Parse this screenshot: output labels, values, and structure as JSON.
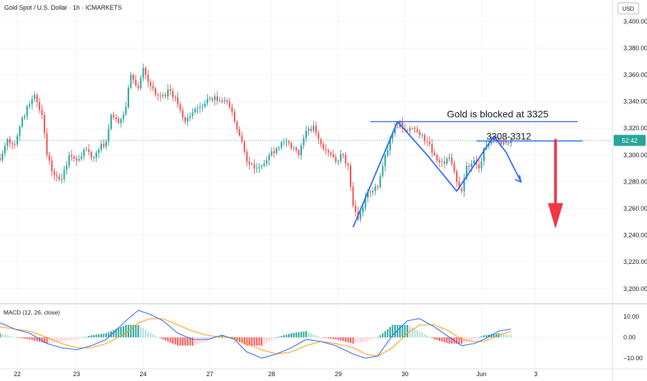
{
  "header": {
    "title": "Gold Spot / U.S. Dollar · 1h · ICMARKETS",
    "currency_badge": "USD"
  },
  "colors": {
    "up": "#26a69a",
    "down": "#ef5350",
    "annotation": "#2962ff",
    "arrow_red": "#f23645",
    "macd_line": "#2962ff",
    "signal_line": "#ff9800",
    "hist_up_strong": "#26a69a",
    "hist_up_weak": "#b2dfdb",
    "hist_down_strong": "#ff5252",
    "hist_down_weak": "#ffcdd2"
  },
  "icons": {
    "price_arrow": "down-arrow-icon"
  },
  "chart_data": {
    "type": "candlestick",
    "title": "Gold Spot / U.S. Dollar · 1h · ICMARKETS",
    "price_axis": {
      "ticks": [
        "3,400.00",
        "3,380.00",
        "3,360.00",
        "3,340.00",
        "3,320.00",
        "3,300.00",
        "3,280.00",
        "3,260.00",
        "3,240.00",
        "3,220.00",
        "3,200.00"
      ],
      "tick_values": [
        3400,
        3380,
        3360,
        3340,
        3320,
        3300,
        3280,
        3260,
        3240,
        3220,
        3200
      ],
      "ylim": [
        3189,
        3416
      ]
    },
    "time_axis": {
      "ticks": [
        "22",
        "23",
        "24",
        "27",
        "28",
        "29",
        "30",
        "Jun",
        "3"
      ],
      "tick_positions": [
        7,
        31,
        58,
        85,
        110,
        137,
        164,
        195,
        217
      ],
      "xlim": [
        0,
        248
      ]
    },
    "current_price": {
      "label": "52:42",
      "value": 3311
    },
    "keypoints": [
      [
        0,
        3296
      ],
      [
        3,
        3312
      ],
      [
        6,
        3308
      ],
      [
        9,
        3328
      ],
      [
        12,
        3338
      ],
      [
        14,
        3345
      ],
      [
        17,
        3330
      ],
      [
        19,
        3300
      ],
      [
        22,
        3285
      ],
      [
        25,
        3282
      ],
      [
        28,
        3300
      ],
      [
        31,
        3296
      ],
      [
        34,
        3304
      ],
      [
        37,
        3298
      ],
      [
        40,
        3304
      ],
      [
        43,
        3310
      ],
      [
        45,
        3330
      ],
      [
        48,
        3324
      ],
      [
        51,
        3336
      ],
      [
        53,
        3360
      ],
      [
        56,
        3350
      ],
      [
        58,
        3365
      ],
      [
        61,
        3352
      ],
      [
        63,
        3345
      ],
      [
        66,
        3345
      ],
      [
        69,
        3348
      ],
      [
        72,
        3338
      ],
      [
        75,
        3325
      ],
      [
        78,
        3332
      ],
      [
        81,
        3336
      ],
      [
        84,
        3342
      ],
      [
        87,
        3344
      ],
      [
        90,
        3340
      ],
      [
        92,
        3340
      ],
      [
        95,
        3325
      ],
      [
        98,
        3310
      ],
      [
        100,
        3295
      ],
      [
        103,
        3290
      ],
      [
        106,
        3292
      ],
      [
        109,
        3300
      ],
      [
        112,
        3305
      ],
      [
        115,
        3310
      ],
      [
        118,
        3305
      ],
      [
        121,
        3300
      ],
      [
        124,
        3318
      ],
      [
        127,
        3322
      ],
      [
        130,
        3308
      ],
      [
        133,
        3302
      ],
      [
        136,
        3295
      ],
      [
        139,
        3300
      ],
      [
        141,
        3292
      ],
      [
        143,
        3262
      ],
      [
        145,
        3252
      ],
      [
        148,
        3268
      ],
      [
        150,
        3272
      ],
      [
        153,
        3276
      ],
      [
        156,
        3300
      ],
      [
        159,
        3316
      ],
      [
        162,
        3325
      ],
      [
        165,
        3318
      ],
      [
        167,
        3320
      ],
      [
        170,
        3315
      ],
      [
        173,
        3310
      ],
      [
        176,
        3300
      ],
      [
        179,
        3295
      ],
      [
        182,
        3298
      ],
      [
        185,
        3280
      ],
      [
        187,
        3273
      ],
      [
        189,
        3292
      ],
      [
        192,
        3296
      ],
      [
        194,
        3290
      ],
      [
        196,
        3305
      ],
      [
        199,
        3312
      ],
      [
        202,
        3310
      ],
      [
        204,
        3310
      ],
      [
        207,
        3312
      ]
    ],
    "annotations": {
      "resistance_label": "Gold is blocked at 3325",
      "resistance_level": 3325,
      "support_label": "3308-3312",
      "support_range": [
        3308,
        3312
      ],
      "pattern": "W",
      "projection": "down"
    },
    "macd": {
      "label": "MACD (12, 26, close)",
      "ticks": [
        "10.00",
        "0.00",
        "−10.00"
      ],
      "tick_values": [
        10,
        0,
        -10
      ],
      "ylim": [
        -15,
        16
      ],
      "macd_line": [
        [
          0,
          7
        ],
        [
          6,
          4
        ],
        [
          12,
          2
        ],
        [
          19,
          -3
        ],
        [
          25,
          -5
        ],
        [
          31,
          -6
        ],
        [
          37,
          -4
        ],
        [
          43,
          -1
        ],
        [
          51,
          8
        ],
        [
          56,
          13
        ],
        [
          61,
          11
        ],
        [
          66,
          8
        ],
        [
          72,
          2
        ],
        [
          78,
          -1
        ],
        [
          84,
          -1
        ],
        [
          90,
          1
        ],
        [
          95,
          -1
        ],
        [
          100,
          -7
        ],
        [
          106,
          -10
        ],
        [
          112,
          -8
        ],
        [
          118,
          -5
        ],
        [
          124,
          -1
        ],
        [
          130,
          -2
        ],
        [
          136,
          -4
        ],
        [
          143,
          -8
        ],
        [
          148,
          -10
        ],
        [
          153,
          -9
        ],
        [
          159,
          1
        ],
        [
          165,
          8
        ],
        [
          170,
          9
        ],
        [
          176,
          5
        ],
        [
          182,
          0
        ],
        [
          187,
          -4
        ],
        [
          192,
          -3
        ],
        [
          196,
          -1
        ],
        [
          202,
          3
        ],
        [
          207,
          4
        ]
      ],
      "signal_line": [
        [
          0,
          5
        ],
        [
          6,
          4
        ],
        [
          12,
          3
        ],
        [
          19,
          0
        ],
        [
          25,
          -3
        ],
        [
          31,
          -5
        ],
        [
          37,
          -5
        ],
        [
          43,
          -3
        ],
        [
          51,
          2
        ],
        [
          56,
          7
        ],
        [
          61,
          9
        ],
        [
          66,
          9
        ],
        [
          72,
          6
        ],
        [
          78,
          3
        ],
        [
          84,
          1
        ],
        [
          90,
          0
        ],
        [
          95,
          0
        ],
        [
          100,
          -3
        ],
        [
          106,
          -6
        ],
        [
          112,
          -8
        ],
        [
          118,
          -7
        ],
        [
          124,
          -4
        ],
        [
          130,
          -2
        ],
        [
          136,
          -3
        ],
        [
          143,
          -5
        ],
        [
          148,
          -8
        ],
        [
          153,
          -9
        ],
        [
          159,
          -5
        ],
        [
          165,
          2
        ],
        [
          170,
          6
        ],
        [
          176,
          6
        ],
        [
          182,
          3
        ],
        [
          187,
          -1
        ],
        [
          192,
          -2
        ],
        [
          196,
          -2
        ],
        [
          202,
          1
        ],
        [
          207,
          3
        ]
      ]
    }
  }
}
